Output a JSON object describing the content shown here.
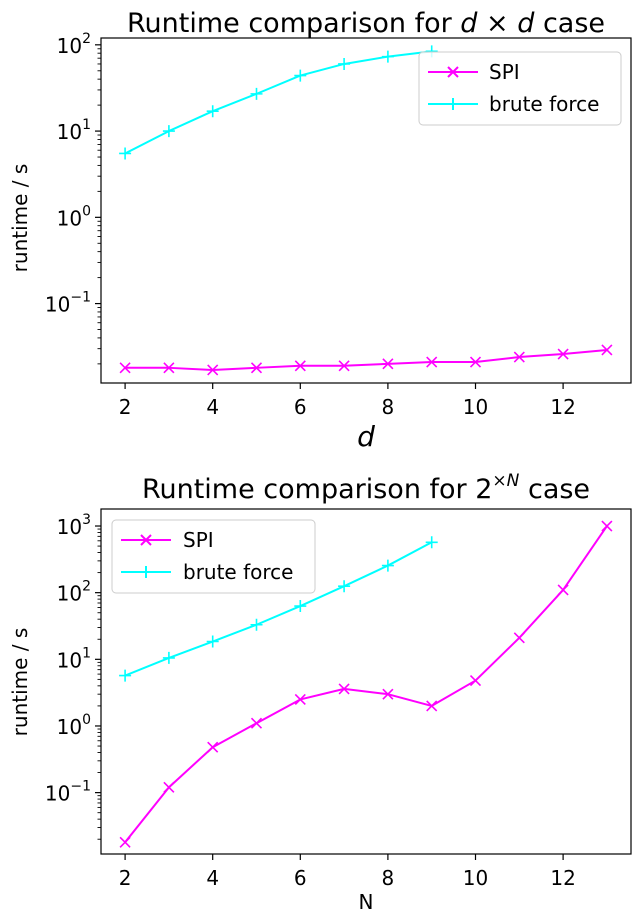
{
  "chart_data": [
    {
      "type": "line",
      "title_prefix": "Runtime comparison for ",
      "title_math_a": "d",
      "title_times": " × ",
      "title_math_b": "d",
      "title_suffix": " case",
      "xlabel": "d",
      "ylabel": "runtime / s",
      "y_scale": "log",
      "xlim": [
        1.45,
        13.55
      ],
      "ylim": [
        0.012,
        120
      ],
      "xticks": [
        "2",
        "4",
        "6",
        "8",
        "10",
        "12"
      ],
      "yticks": [
        {
          "base": "10",
          "exp": "−1"
        },
        {
          "base": "10",
          "exp": "0"
        },
        {
          "base": "10",
          "exp": "1"
        },
        {
          "base": "10",
          "exp": "2"
        }
      ],
      "legend_position": "upper right",
      "series": [
        {
          "name": "SPI",
          "color": "#ff00ff",
          "marker": "x",
          "x": [
            2,
            3,
            4,
            5,
            6,
            7,
            8,
            9,
            10,
            11,
            12,
            13
          ],
          "y": [
            0.018,
            0.018,
            0.017,
            0.018,
            0.019,
            0.019,
            0.02,
            0.021,
            0.021,
            0.024,
            0.026,
            0.029
          ]
        },
        {
          "name": "brute force",
          "color": "#00ffff",
          "marker": "+",
          "x": [
            2,
            3,
            4,
            5,
            6,
            7,
            8,
            9
          ],
          "y": [
            5.5,
            10,
            17,
            27,
            44,
            60,
            73,
            84
          ]
        }
      ]
    },
    {
      "type": "line",
      "title_prefix": "Runtime comparison for 2",
      "title_sup": "×N",
      "title_suffix": " case",
      "xlabel": "N",
      "ylabel": "runtime / s",
      "y_scale": "log",
      "xlim": [
        1.45,
        13.55
      ],
      "ylim": [
        0.012,
        1800
      ],
      "xticks": [
        "2",
        "4",
        "6",
        "8",
        "10",
        "12"
      ],
      "yticks": [
        {
          "base": "10",
          "exp": "−1"
        },
        {
          "base": "10",
          "exp": "0"
        },
        {
          "base": "10",
          "exp": "1"
        },
        {
          "base": "10",
          "exp": "2"
        },
        {
          "base": "10",
          "exp": "3"
        }
      ],
      "legend_position": "upper left",
      "series": [
        {
          "name": "SPI",
          "color": "#ff00ff",
          "marker": "x",
          "x": [
            2,
            3,
            4,
            5,
            6,
            7,
            8,
            9,
            10,
            11,
            12,
            13
          ],
          "y": [
            0.018,
            0.12,
            0.48,
            1.1,
            2.5,
            3.6,
            3.0,
            2.0,
            4.8,
            21,
            110,
            1000
          ]
        },
        {
          "name": "brute force",
          "color": "#00ffff",
          "marker": "+",
          "x": [
            2,
            3,
            4,
            5,
            6,
            7,
            8,
            9
          ],
          "y": [
            5.7,
            10.5,
            18.5,
            33,
            63,
            125,
            255,
            570
          ]
        }
      ]
    }
  ]
}
